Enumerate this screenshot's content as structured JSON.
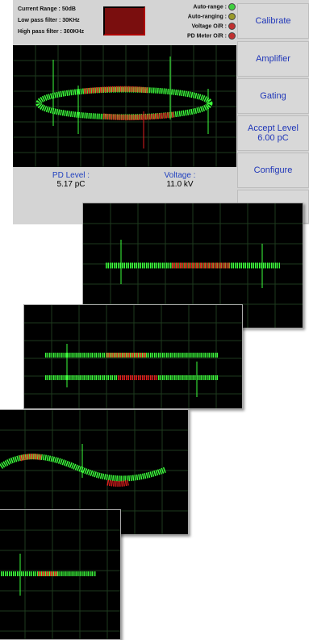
{
  "status": {
    "current_range": "Current Range : 50dB",
    "low_pass": "Low pass filter : 30KHz",
    "high_pass": "High pass filter : 300KHz"
  },
  "indicators": [
    {
      "label": "Auto-range :",
      "color": "#3ecf3e"
    },
    {
      "label": "Auto-ranging :",
      "color": "#9a9a2a"
    },
    {
      "label": "Voltage O/R :",
      "color": "#c03030"
    },
    {
      "label": "PD Meter O/R :",
      "color": "#c03030"
    }
  ],
  "readouts": {
    "pd_label": "PD Level :",
    "pd_value": "5.17 pC",
    "voltage_label": "Voltage :",
    "voltage_value": "11.0 kV"
  },
  "buttons": {
    "calibrate": "Calibrate",
    "amplifier": "Amplifier",
    "gating": "Gating",
    "accept_level": "Accept Level\n6.00 pC",
    "configure": "Configure"
  },
  "colors": {
    "trace_green": "#3cff3c",
    "trace_red": "#e01e1e",
    "grid": "#1e3a1e",
    "button_text": "#1f36b8"
  }
}
